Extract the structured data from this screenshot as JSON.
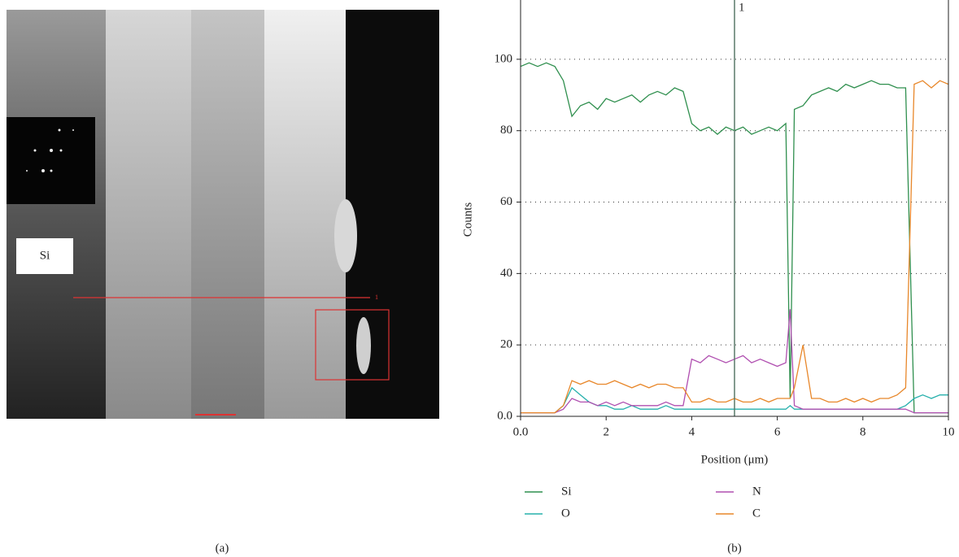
{
  "image": {
    "label": "Si",
    "marker": "1",
    "caption": "(a)"
  },
  "chart_data": {
    "type": "line",
    "caption": "(b)",
    "xlabel": "Position (μm)",
    "ylabel": "Counts",
    "x": [
      0,
      0.2,
      0.4,
      0.6,
      0.8,
      1,
      1.2,
      1.4,
      1.6,
      1.8,
      2,
      2.2,
      2.4,
      2.6,
      2.8,
      3,
      3.2,
      3.4,
      3.6,
      3.8,
      4,
      4.2,
      4.4,
      4.6,
      4.8,
      5,
      5.2,
      5.4,
      5.6,
      5.8,
      6,
      6.2,
      6.3,
      6.4,
      6.6,
      6.8,
      7,
      7.2,
      7.4,
      7.6,
      7.8,
      8,
      8.2,
      8.4,
      8.6,
      8.8,
      9,
      9.2,
      9.4,
      9.6,
      9.8,
      10
    ],
    "series": [
      {
        "name": "Si",
        "color": "#2f8f4e",
        "values": [
          98,
          99,
          98,
          99,
          98,
          94,
          84,
          87,
          88,
          86,
          89,
          88,
          89,
          90,
          88,
          90,
          91,
          90,
          92,
          91,
          82,
          80,
          81,
          79,
          81,
          80,
          81,
          79,
          80,
          81,
          80,
          82,
          5,
          86,
          87,
          90,
          91,
          92,
          91,
          93,
          92,
          93,
          94,
          93,
          93,
          92,
          92,
          1,
          1,
          1,
          1,
          1
        ]
      },
      {
        "name": "O",
        "color": "#26b0ac",
        "values": [
          1,
          1,
          1,
          1,
          1,
          3,
          8,
          6,
          4,
          3,
          3,
          2,
          2,
          3,
          2,
          2,
          2,
          3,
          2,
          2,
          2,
          2,
          2,
          2,
          2,
          2,
          2,
          2,
          2,
          2,
          2,
          2,
          3,
          2,
          2,
          2,
          2,
          2,
          2,
          2,
          2,
          2,
          2,
          2,
          2,
          2,
          3,
          5,
          6,
          5,
          6,
          6
        ]
      },
      {
        "name": "N",
        "color": "#b04fb0",
        "values": [
          1,
          1,
          1,
          1,
          1,
          2,
          5,
          4,
          4,
          3,
          4,
          3,
          4,
          3,
          3,
          3,
          3,
          4,
          3,
          3,
          16,
          15,
          17,
          16,
          15,
          16,
          17,
          15,
          16,
          15,
          14,
          15,
          30,
          3,
          2,
          2,
          2,
          2,
          2,
          2,
          2,
          2,
          2,
          2,
          2,
          2,
          2,
          1,
          1,
          1,
          1,
          1
        ]
      },
      {
        "name": "C",
        "color": "#e8872a",
        "values": [
          1,
          1,
          1,
          1,
          1,
          3,
          10,
          9,
          10,
          9,
          9,
          10,
          9,
          8,
          9,
          8,
          9,
          9,
          8,
          8,
          4,
          4,
          5,
          4,
          4,
          5,
          4,
          4,
          5,
          4,
          5,
          5,
          5,
          8,
          20,
          5,
          5,
          4,
          4,
          5,
          4,
          5,
          4,
          5,
          5,
          6,
          8,
          93,
          94,
          92,
          94,
          93
        ]
      }
    ],
    "xlim": [
      0,
      10
    ],
    "xticks": [
      {
        "value": 0,
        "label": "0.0"
      },
      2,
      4,
      6,
      8,
      10
    ],
    "ylim": [
      0,
      116.6
    ],
    "yticks": [
      {
        "value": 0,
        "label": "0.0"
      },
      20,
      40,
      60,
      80,
      100
    ],
    "grid": true,
    "annotations": [
      {
        "x": 5,
        "label": "1"
      }
    ]
  }
}
